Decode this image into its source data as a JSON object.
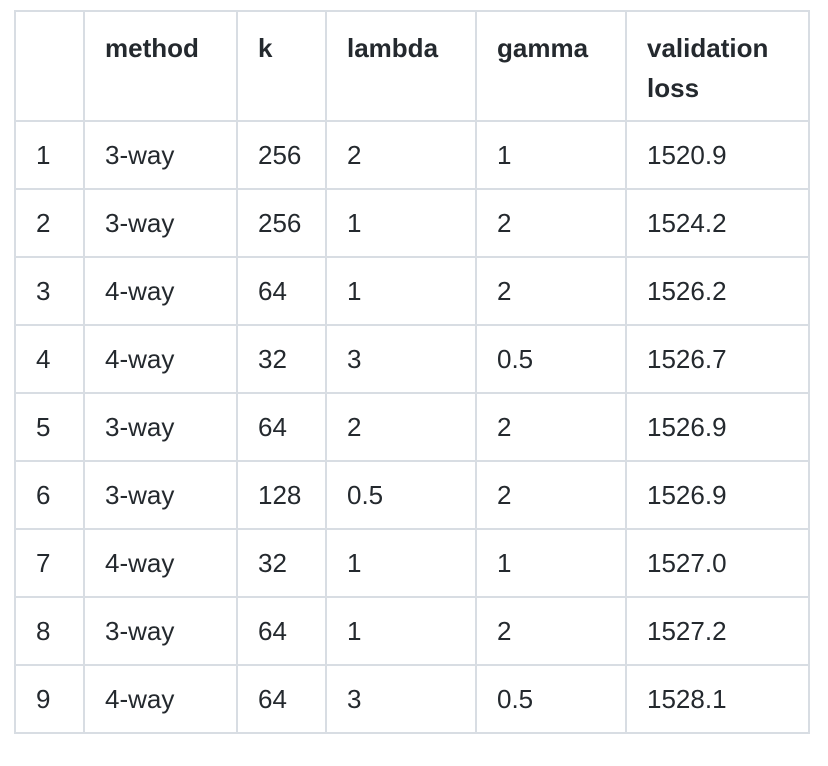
{
  "table": {
    "headers": [
      "",
      "method",
      "k",
      "lambda",
      "gamma",
      "validation loss"
    ],
    "rows": [
      [
        "1",
        "3-way",
        "256",
        "2",
        "1",
        "1520.9"
      ],
      [
        "2",
        "3-way",
        "256",
        "1",
        "2",
        "1524.2"
      ],
      [
        "3",
        "4-way",
        "64",
        "1",
        "2",
        "1526.2"
      ],
      [
        "4",
        "4-way",
        "32",
        "3",
        "0.5",
        "1526.7"
      ],
      [
        "5",
        "3-way",
        "64",
        "2",
        "2",
        "1526.9"
      ],
      [
        "6",
        "3-way",
        "128",
        "0.5",
        "2",
        "1526.9"
      ],
      [
        "7",
        "4-way",
        "32",
        "1",
        "1",
        "1527.0"
      ],
      [
        "8",
        "3-way",
        "64",
        "1",
        "2",
        "1527.2"
      ],
      [
        "9",
        "4-way",
        "64",
        "3",
        "0.5",
        "1528.1"
      ]
    ]
  }
}
